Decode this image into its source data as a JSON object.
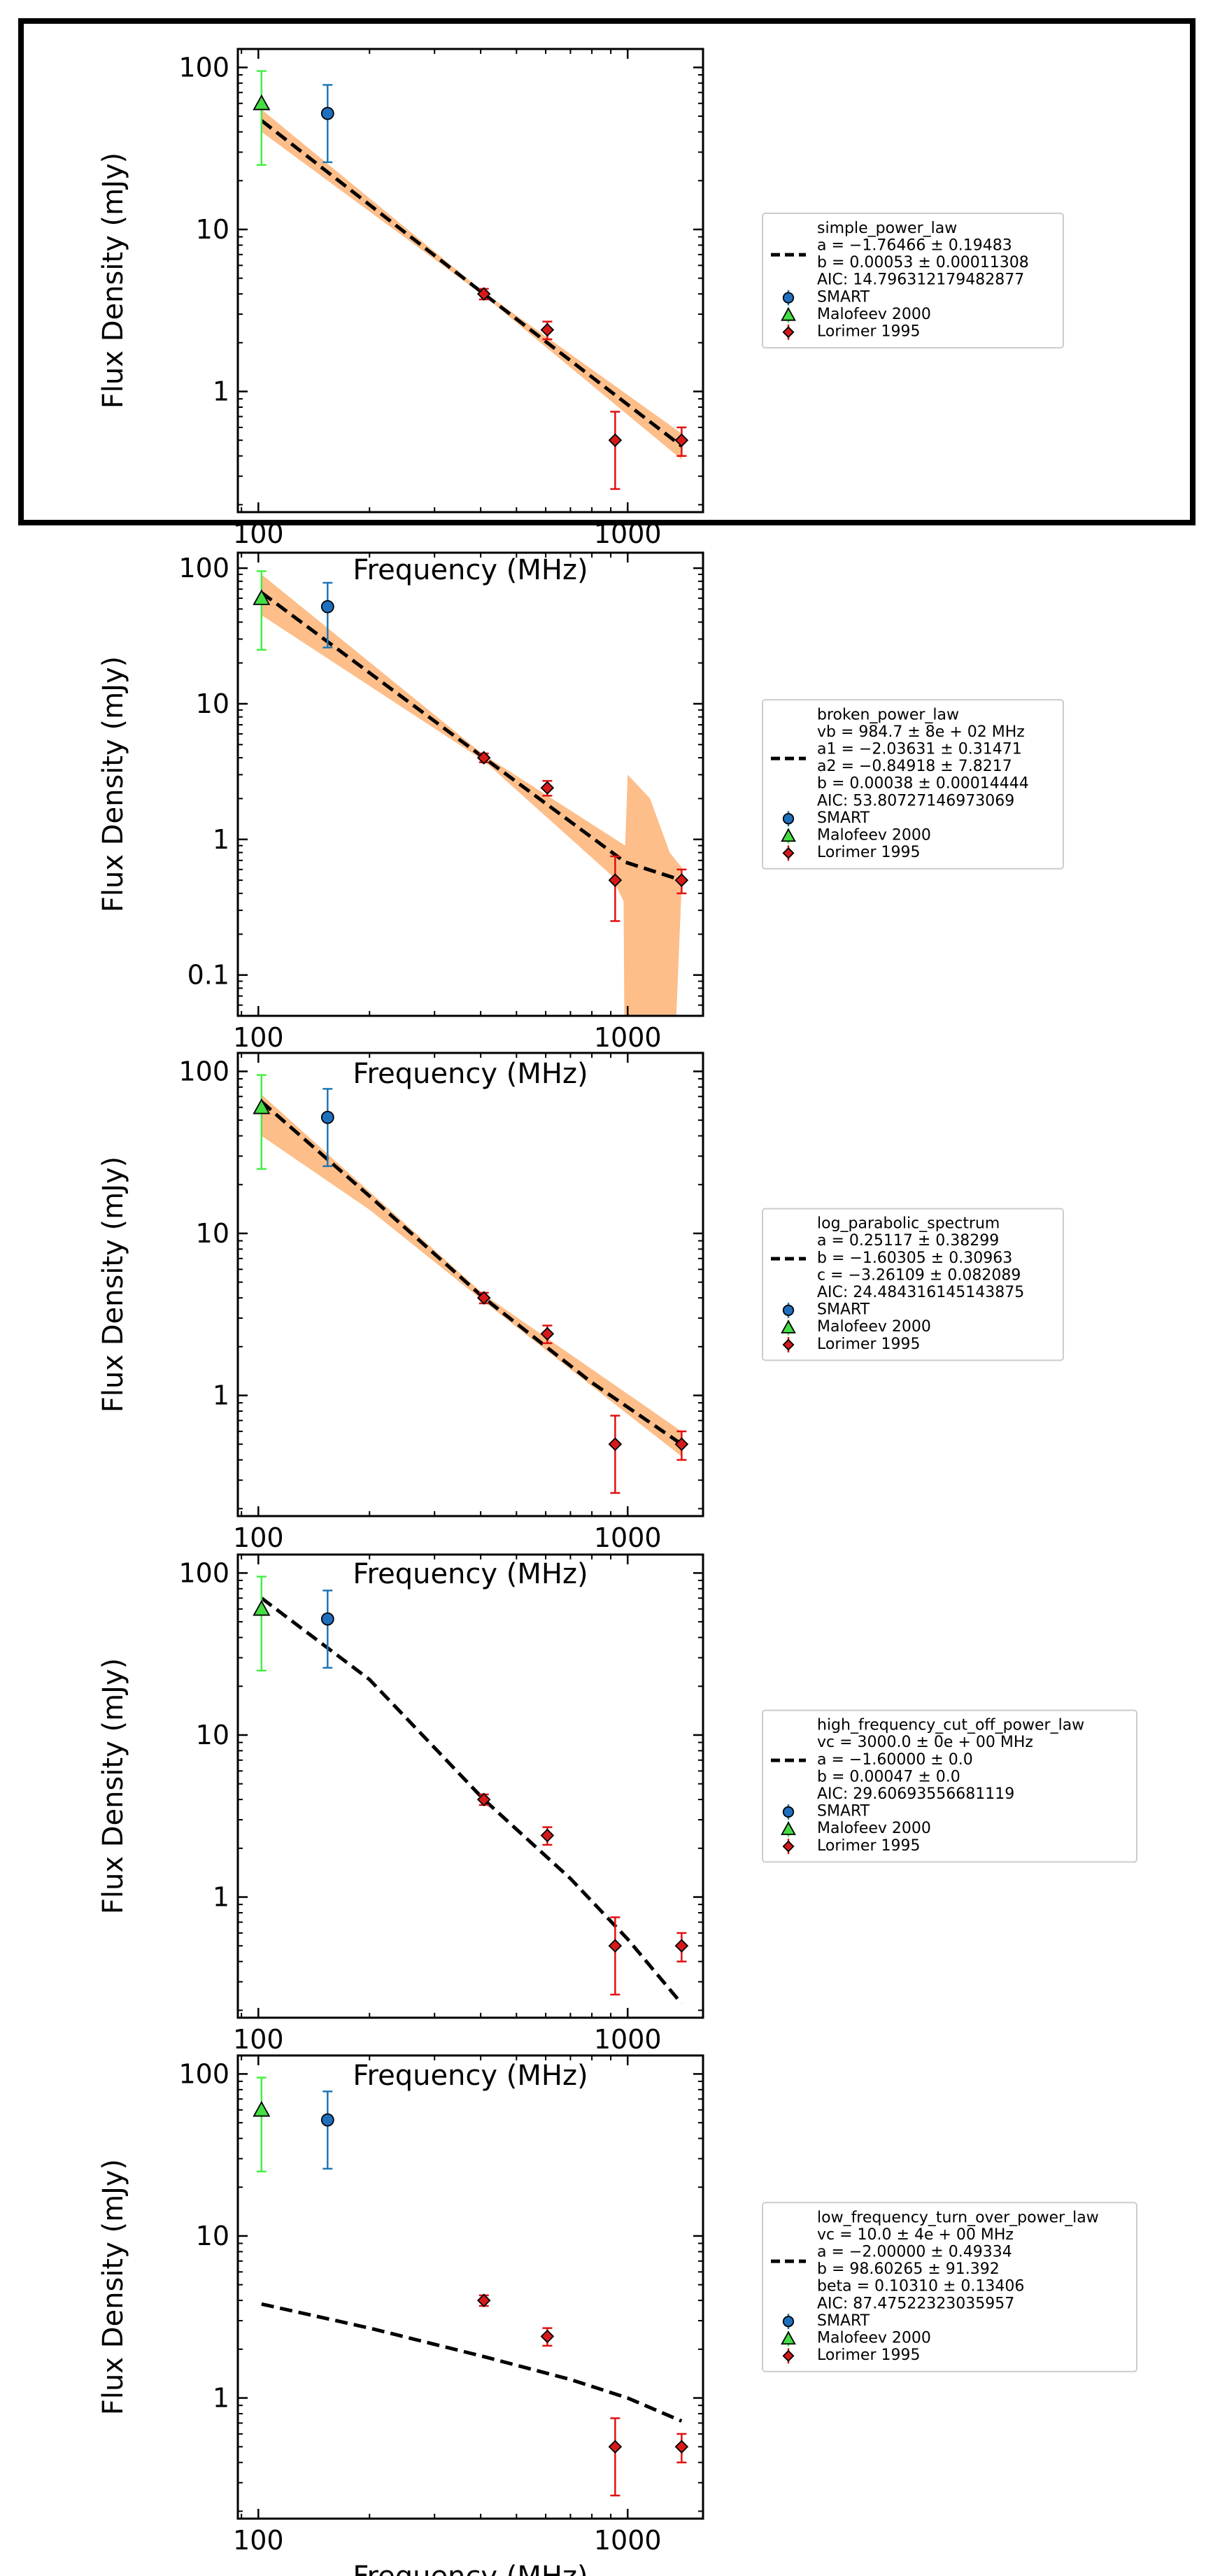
{
  "figure": {
    "highlight_panel": 0
  },
  "common": {
    "xlabel": "Frequency (MHz)",
    "ylabel": "Flux Density (mJy)",
    "xticks": [
      {
        "v": 100,
        "label": "100"
      },
      {
        "v": 1000,
        "label": "1000"
      }
    ],
    "xlim": [
      88,
      1600
    ],
    "log_x": true,
    "log_y": true,
    "data_series": [
      {
        "name": "SMART",
        "marker": "circle",
        "color": "#1f77b4",
        "errcolor": "#1f77b4",
        "fill": "#1f6fbf",
        "points": [
          {
            "x": 154,
            "y": 52,
            "lo": 26,
            "hi": 78
          }
        ]
      },
      {
        "name": "Malofeev 2000",
        "marker": "triangle",
        "color": "#33cc33",
        "errcolor": "#44ee44",
        "fill": "#44dd44",
        "points": [
          {
            "x": 102,
            "y": 60,
            "lo": 25,
            "hi": 95
          }
        ]
      },
      {
        "name": "Lorimer 1995",
        "marker": "diamond",
        "color": "#d62728",
        "errcolor": "#e01010",
        "fill": "#d61a1a",
        "points": [
          {
            "x": 408,
            "y": 4.0,
            "lo": 3.7,
            "hi": 4.3
          },
          {
            "x": 606,
            "y": 2.4,
            "lo": 2.1,
            "hi": 2.7
          },
          {
            "x": 925,
            "y": 0.5,
            "lo": 0.25,
            "hi": 0.75
          },
          {
            "x": 1400,
            "y": 0.5,
            "lo": 0.4,
            "hi": 0.6
          }
        ]
      }
    ]
  },
  "chart_data": [
    {
      "type": "scatter",
      "xlabel": "Frequency (MHz)",
      "ylabel": "Flux Density (mJy)",
      "ylim": [
        0.18,
        130
      ],
      "yticks": [
        {
          "v": 1,
          "label": "1"
        },
        {
          "v": 10,
          "label": "10"
        },
        {
          "v": 100,
          "label": "100"
        }
      ],
      "model": {
        "name": "simple_power_law",
        "curve": [
          [
            102,
            47
          ],
          [
            408,
            4.0
          ],
          [
            1400,
            0.46
          ]
        ],
        "band_upper": [
          [
            102,
            55
          ],
          [
            408,
            4.1
          ],
          [
            1400,
            0.55
          ]
        ],
        "band_lower": [
          [
            102,
            40
          ],
          [
            408,
            3.9
          ],
          [
            1400,
            0.38
          ]
        ]
      },
      "legend_lines": [
        "simple_power_law",
        "a = −1.76466 ± 0.19483",
        "b = 0.00053 ± 0.00011308",
        "AIC: 14.796312179482877"
      ]
    },
    {
      "type": "scatter",
      "xlabel": "Frequency (MHz)",
      "ylabel": "Flux Density (mJy)",
      "ylim": [
        0.05,
        130
      ],
      "yticks": [
        {
          "v": 0.1,
          "label": "0.1"
        },
        {
          "v": 1,
          "label": "1"
        },
        {
          "v": 10,
          "label": "10"
        },
        {
          "v": 100,
          "label": "100"
        }
      ],
      "model": {
        "name": "broken_power_law",
        "curve": [
          [
            102,
            66
          ],
          [
            408,
            4.0
          ],
          [
            984.7,
            0.68
          ],
          [
            1400,
            0.5
          ]
        ],
        "band_upper": [
          [
            102,
            90
          ],
          [
            408,
            4.2
          ],
          [
            984.7,
            0.9
          ],
          [
            1000,
            3.0
          ],
          [
            1150,
            2.0
          ],
          [
            1300,
            0.8
          ],
          [
            1400,
            0.62
          ]
        ],
        "band_lower": [
          [
            102,
            45
          ],
          [
            408,
            3.8
          ],
          [
            900,
            0.55
          ],
          [
            975,
            0.35
          ],
          [
            980,
            0.04
          ],
          [
            1350,
            0.04
          ],
          [
            1400,
            0.45
          ]
        ]
      },
      "legend_lines": [
        "broken_power_law",
        "vb = 984.7 ± 8e + 02 MHz",
        "a1 = −2.03631 ± 0.31471",
        "a2 = −0.84918 ± 7.8217",
        "b = 0.00038 ± 0.00014444",
        "AIC: 53.80727146973069"
      ]
    },
    {
      "type": "scatter",
      "xlabel": "Frequency (MHz)",
      "ylabel": "Flux Density (mJy)",
      "ylim": [
        0.18,
        130
      ],
      "yticks": [
        {
          "v": 1,
          "label": "1"
        },
        {
          "v": 10,
          "label": "10"
        },
        {
          "v": 100,
          "label": "100"
        }
      ],
      "model": {
        "name": "log_parabolic_spectrum",
        "curve": [
          [
            102,
            65
          ],
          [
            200,
            17
          ],
          [
            408,
            4.0
          ],
          [
            800,
            1.2
          ],
          [
            1400,
            0.5
          ]
        ],
        "band_upper": [
          [
            102,
            72
          ],
          [
            408,
            4.2
          ],
          [
            1400,
            0.6
          ]
        ],
        "band_lower": [
          [
            102,
            40
          ],
          [
            200,
            14
          ],
          [
            408,
            3.8
          ],
          [
            1400,
            0.42
          ]
        ]
      },
      "legend_lines": [
        "log_parabolic_spectrum",
        "a = 0.25117 ± 0.38299",
        "b = −1.60305 ± 0.30963",
        "c = −3.26109 ± 0.082089",
        "AIC: 24.484316145143875"
      ]
    },
    {
      "type": "scatter",
      "xlabel": "Frequency (MHz)",
      "ylabel": "Flux Density (mJy)",
      "ylim": [
        0.18,
        130
      ],
      "yticks": [
        {
          "v": 1,
          "label": "1"
        },
        {
          "v": 10,
          "label": "10"
        },
        {
          "v": 100,
          "label": "100"
        }
      ],
      "model": {
        "name": "high_frequency_cut_off_power_law",
        "curve": [
          [
            102,
            70
          ],
          [
            200,
            22
          ],
          [
            408,
            4.0
          ],
          [
            700,
            1.3
          ],
          [
            1000,
            0.55
          ],
          [
            1400,
            0.22
          ]
        ]
      },
      "legend_lines": [
        "high_frequency_cut_off_power_law",
        "vc = 3000.0 ± 0e + 00 MHz",
        "a = −1.60000 ± 0.0",
        "b = 0.00047 ± 0.0",
        "AIC: 29.60693556681119"
      ]
    },
    {
      "type": "scatter",
      "xlabel": "Frequency (MHz)",
      "ylabel": "Flux Density (mJy)",
      "ylim": [
        0.18,
        130
      ],
      "yticks": [
        {
          "v": 1,
          "label": "1"
        },
        {
          "v": 10,
          "label": "10"
        },
        {
          "v": 100,
          "label": "100"
        }
      ],
      "model": {
        "name": "low_frequency_turn_over_power_law",
        "curve": [
          [
            102,
            3.8
          ],
          [
            200,
            2.7
          ],
          [
            408,
            1.8
          ],
          [
            700,
            1.3
          ],
          [
            1000,
            1.0
          ],
          [
            1400,
            0.72
          ]
        ]
      },
      "legend_lines": [
        "low_frequency_turn_over_power_law",
        "vc = 10.0 ± 4e + 00 MHz",
        "a = −2.00000 ± 0.49334",
        "b = 98.60265 ± 91.392",
        "beta = 0.10310 ± 0.13406",
        "AIC: 87.47522323035957"
      ]
    }
  ]
}
